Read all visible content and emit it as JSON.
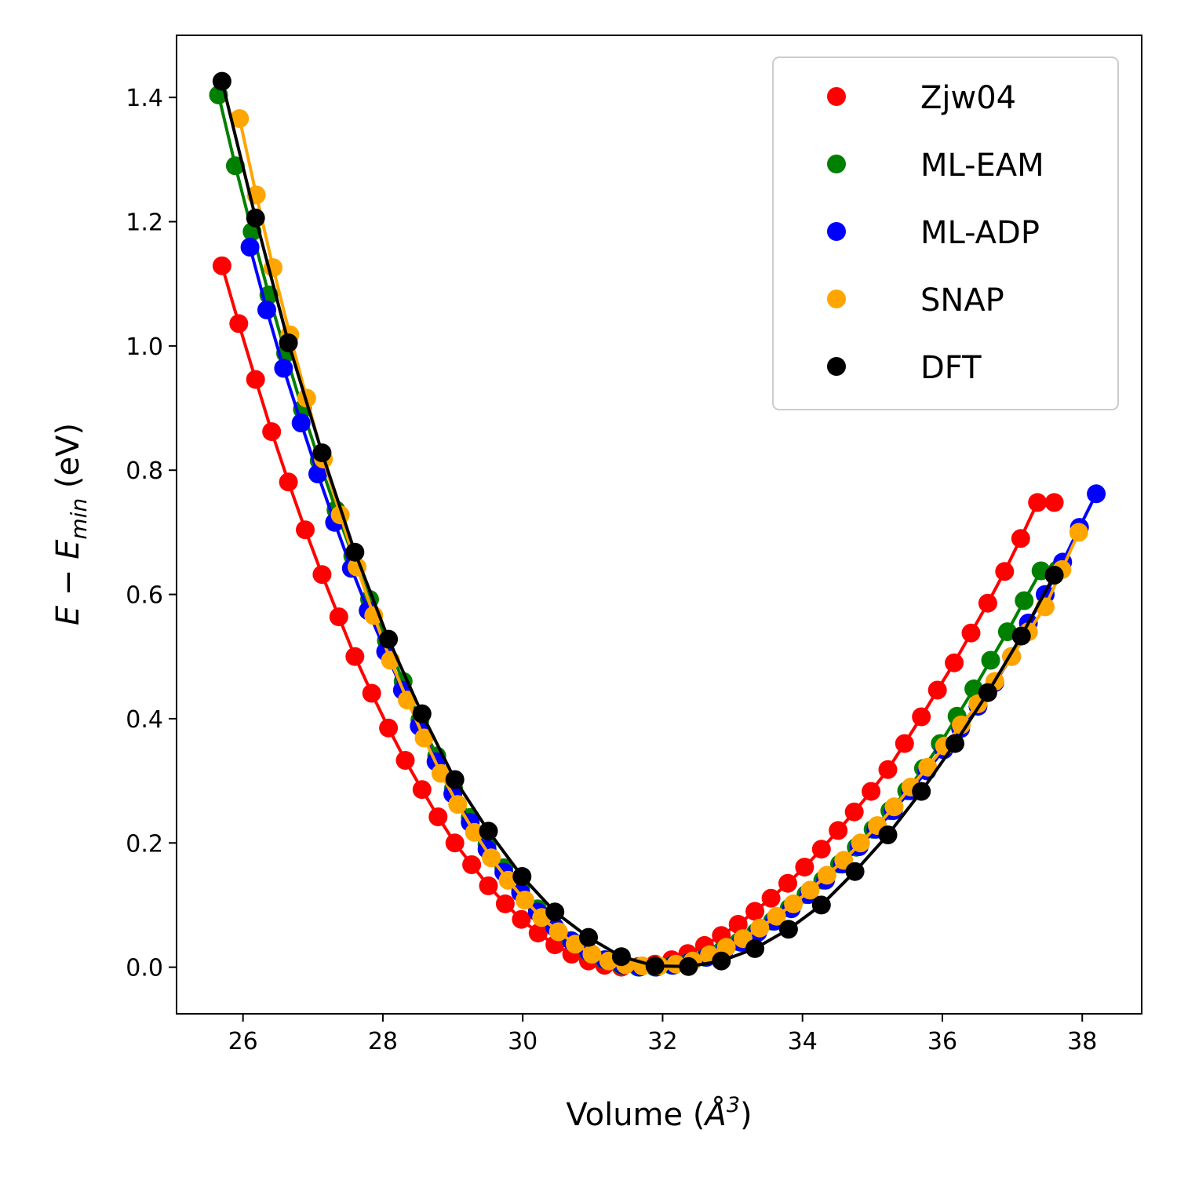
{
  "chart_data": {
    "type": "line",
    "xlabel_prefix": "Volume (",
    "xlabel_unit": "Å",
    "xlabel_exp": "3",
    "xlabel_suffix": ")",
    "ylabel_lhs": "E",
    "ylabel_minus": " − ",
    "ylabel_e": "E",
    "ylabel_sub": "min",
    "ylabel_suffix": " (eV)",
    "xlim": [
      25.05,
      38.85
    ],
    "ylim": [
      -0.075,
      1.5
    ],
    "x_ticks": [
      26,
      28,
      30,
      32,
      34,
      36,
      38
    ],
    "x_tick_labels": [
      "26",
      "28",
      "30",
      "32",
      "34",
      "36",
      "38"
    ],
    "y_ticks": [
      0.0,
      0.2,
      0.4,
      0.6,
      0.8,
      1.0,
      1.2,
      1.4
    ],
    "y_tick_labels": [
      "0.0",
      "0.2",
      "0.4",
      "0.6",
      "0.8",
      "1.0",
      "1.2",
      "1.4"
    ],
    "grid": false,
    "legend_position": "top-right",
    "legend_order": [
      4,
      3,
      2,
      1,
      0
    ],
    "series": [
      {
        "name": "DFT",
        "color": "#000000",
        "V0": 31.8,
        "Emin": 0.0,
        "B": 0.0058,
        "Bp": 4.8,
        "xmin": 25.7,
        "xmax": 37.6,
        "n": 26,
        "x": [
          25.7,
          26.18,
          26.65,
          27.13,
          27.6,
          28.08,
          28.56,
          29.03,
          29.51,
          29.99,
          30.46,
          30.94,
          31.41,
          31.89,
          32.37,
          32.84,
          33.32,
          33.8,
          34.27,
          34.75,
          35.22,
          35.7,
          36.18,
          36.65,
          37.13,
          37.6
        ],
        "y": [
          1.426,
          1.206,
          1.005,
          0.828,
          0.668,
          0.528,
          0.408,
          0.302,
          0.219,
          0.146,
          0.089,
          0.048,
          0.017,
          0.002,
          0.001,
          0.01,
          0.03,
          0.061,
          0.1,
          0.154,
          0.213,
          0.283,
          0.36,
          0.442,
          0.533,
          0.631
        ]
      },
      {
        "name": "SNAP",
        "color": "#ffa500",
        "V0": 31.6,
        "Emin": 0.0,
        "B": 0.0056,
        "Bp": 4.8,
        "xmin": 25.95,
        "xmax": 37.95,
        "n": 51,
        "x": [
          25.95,
          26.19,
          26.43,
          26.67,
          26.91,
          27.15,
          27.39,
          27.63,
          27.87,
          28.11,
          28.35,
          28.59,
          28.83,
          29.07,
          29.31,
          29.55,
          29.79,
          30.03,
          30.27,
          30.51,
          30.75,
          30.99,
          31.23,
          31.47,
          31.71,
          31.95,
          32.19,
          32.43,
          32.67,
          32.91,
          33.15,
          33.39,
          33.63,
          33.87,
          34.11,
          34.35,
          34.59,
          34.83,
          35.07,
          35.31,
          35.55,
          35.79,
          36.03,
          36.27,
          36.51,
          36.75,
          36.99,
          37.23,
          37.47,
          37.71,
          37.95
        ],
        "y": [
          1.366,
          1.243,
          1.126,
          1.018,
          0.916,
          0.818,
          0.728,
          0.644,
          0.566,
          0.494,
          0.43,
          0.369,
          0.312,
          0.262,
          0.217,
          0.176,
          0.14,
          0.108,
          0.08,
          0.057,
          0.037,
          0.021,
          0.01,
          0.004,
          0.002,
          0.002,
          0.005,
          0.01,
          0.02,
          0.032,
          0.046,
          0.063,
          0.082,
          0.102,
          0.124,
          0.148,
          0.172,
          0.2,
          0.228,
          0.258,
          0.29,
          0.322,
          0.356,
          0.39,
          0.424,
          0.46,
          0.5,
          0.54,
          0.58,
          0.64,
          0.7
        ]
      },
      {
        "name": "ML-ADP",
        "color": "#0000ff",
        "V0": 31.7,
        "Emin": 0.0,
        "B": 0.0057,
        "Bp": 4.9,
        "xmin": 26.1,
        "xmax": 38.2,
        "n": 51,
        "x": [
          26.1,
          26.34,
          26.58,
          26.83,
          27.07,
          27.31,
          27.55,
          27.79,
          28.04,
          28.28,
          28.52,
          28.76,
          29.0,
          29.25,
          29.49,
          29.73,
          29.97,
          30.21,
          30.46,
          30.7,
          30.94,
          31.18,
          31.42,
          31.67,
          31.91,
          32.15,
          32.39,
          32.63,
          32.88,
          33.12,
          33.36,
          33.6,
          33.84,
          34.09,
          34.33,
          34.57,
          34.81,
          35.05,
          35.3,
          35.54,
          35.78,
          36.02,
          36.26,
          36.51,
          36.75,
          36.99,
          37.23,
          37.47,
          37.72,
          37.96,
          38.2
        ],
        "y": [
          1.159,
          1.058,
          0.964,
          0.876,
          0.794,
          0.716,
          0.642,
          0.574,
          0.508,
          0.446,
          0.388,
          0.331,
          0.279,
          0.233,
          0.19,
          0.153,
          0.12,
          0.089,
          0.064,
          0.042,
          0.025,
          0.012,
          0.004,
          0.0,
          0.0,
          0.003,
          0.008,
          0.016,
          0.026,
          0.04,
          0.056,
          0.074,
          0.094,
          0.117,
          0.14,
          0.166,
          0.194,
          0.222,
          0.252,
          0.284,
          0.316,
          0.35,
          0.384,
          0.42,
          0.458,
          0.5,
          0.554,
          0.6,
          0.652,
          0.708,
          0.762
        ]
      },
      {
        "name": "ML-EAM",
        "color": "#008000",
        "V0": 31.75,
        "Emin": 0.0,
        "B": 0.0058,
        "Bp": 4.8,
        "xmin": 25.65,
        "xmax": 37.65,
        "n": 51,
        "x": [
          25.65,
          25.89,
          26.13,
          26.37,
          26.61,
          26.85,
          27.09,
          27.33,
          27.57,
          27.81,
          28.05,
          28.29,
          28.53,
          28.77,
          29.01,
          29.25,
          29.49,
          29.73,
          29.97,
          30.21,
          30.45,
          30.69,
          30.93,
          31.17,
          31.41,
          31.65,
          31.89,
          32.13,
          32.37,
          32.61,
          32.85,
          33.09,
          33.33,
          33.57,
          33.81,
          34.05,
          34.29,
          34.53,
          34.77,
          35.01,
          35.25,
          35.49,
          35.73,
          35.97,
          36.21,
          36.45,
          36.69,
          36.93,
          37.17,
          37.41,
          37.65
        ],
        "y": [
          1.404,
          1.29,
          1.184,
          1.082,
          0.988,
          0.898,
          0.815,
          0.736,
          0.662,
          0.592,
          0.526,
          0.46,
          0.398,
          0.34,
          0.288,
          0.241,
          0.198,
          0.16,
          0.126,
          0.094,
          0.066,
          0.043,
          0.025,
          0.012,
          0.003,
          0.0,
          0.0,
          0.003,
          0.008,
          0.016,
          0.027,
          0.041,
          0.056,
          0.074,
          0.095,
          0.117,
          0.14,
          0.166,
          0.193,
          0.222,
          0.252,
          0.284,
          0.32,
          0.36,
          0.404,
          0.448,
          0.494,
          0.54,
          0.59,
          0.638,
          0.64
        ]
      },
      {
        "name": "Zjw04",
        "color": "#ff0000",
        "V0": 31.2,
        "Emin": 0.0,
        "B": 0.0058,
        "Bp": 4.2,
        "xmin": 25.7,
        "xmax": 37.6,
        "n": 51,
        "x": [
          25.7,
          25.94,
          26.18,
          26.41,
          26.65,
          26.89,
          27.13,
          27.37,
          27.6,
          27.84,
          28.08,
          28.32,
          28.56,
          28.79,
          29.03,
          29.27,
          29.51,
          29.75,
          29.98,
          30.22,
          30.46,
          30.7,
          30.94,
          31.17,
          31.41,
          31.65,
          31.89,
          32.13,
          32.36,
          32.6,
          32.84,
          33.08,
          33.32,
          33.55,
          33.79,
          34.03,
          34.27,
          34.51,
          34.74,
          34.98,
          35.22,
          35.46,
          35.7,
          35.93,
          36.17,
          36.41,
          36.65,
          36.89,
          37.12,
          37.36,
          37.6
        ],
        "y": [
          1.129,
          1.036,
          0.946,
          0.862,
          0.781,
          0.704,
          0.632,
          0.564,
          0.5,
          0.441,
          0.385,
          0.333,
          0.286,
          0.242,
          0.2,
          0.165,
          0.131,
          0.102,
          0.077,
          0.055,
          0.036,
          0.021,
          0.01,
          0.003,
          0.0,
          0.001,
          0.005,
          0.012,
          0.022,
          0.035,
          0.051,
          0.069,
          0.09,
          0.111,
          0.135,
          0.161,
          0.19,
          0.22,
          0.25,
          0.283,
          0.318,
          0.36,
          0.403,
          0.446,
          0.49,
          0.538,
          0.586,
          0.637,
          0.69,
          0.748,
          0.748
        ]
      }
    ]
  }
}
